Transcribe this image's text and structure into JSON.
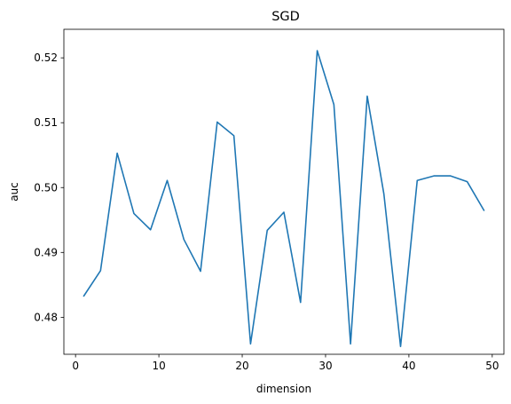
{
  "chart_data": {
    "type": "line",
    "title": "SGD",
    "xlabel": "dimension",
    "ylabel": "auc",
    "xlim": [
      -1.4,
      51.4
    ],
    "ylim": [
      0.4743,
      0.5244
    ],
    "xticks": [
      0,
      10,
      20,
      30,
      40,
      50
    ],
    "xtick_labels": [
      "0",
      "10",
      "20",
      "30",
      "40",
      "50"
    ],
    "yticks": [
      0.48,
      0.49,
      0.5,
      0.51,
      0.52
    ],
    "ytick_labels": [
      "0.48",
      "0.49",
      "0.50",
      "0.51",
      "0.52"
    ],
    "grid": false,
    "series": [
      {
        "name": "auc",
        "color": "#1f77b4",
        "x": [
          1,
          3,
          5,
          7,
          9,
          11,
          13,
          15,
          17,
          19,
          21,
          23,
          25,
          27,
          29,
          31,
          33,
          35,
          37,
          39,
          41,
          43,
          45,
          47,
          49
        ],
        "y": [
          0.4833,
          0.4872,
          0.5053,
          0.496,
          0.4935,
          0.5011,
          0.492,
          0.4871,
          0.5101,
          0.508,
          0.4759,
          0.4934,
          0.4962,
          0.4823,
          0.5211,
          0.5128,
          0.4759,
          0.5141,
          0.499,
          0.4755,
          0.5011,
          0.5018,
          0.5018,
          0.5009,
          0.4965
        ]
      }
    ]
  }
}
